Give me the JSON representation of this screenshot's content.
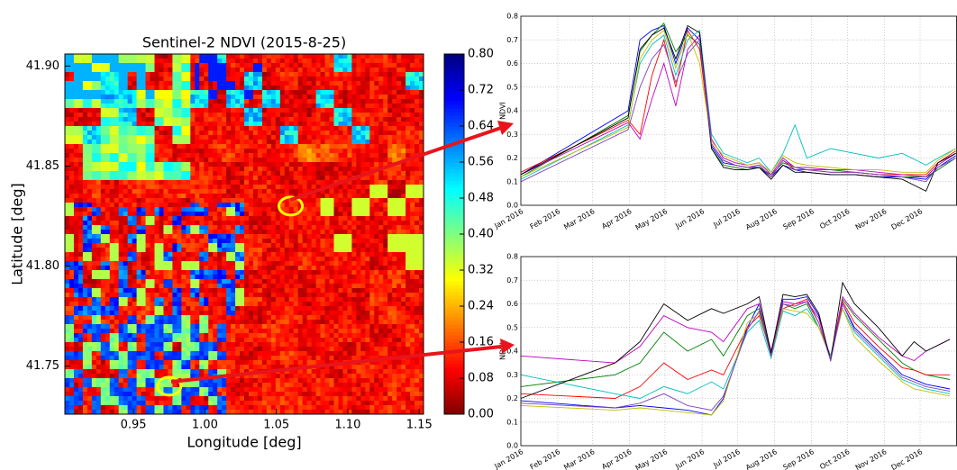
{
  "chart_data": [
    {
      "type": "heatmap",
      "title": "Sentinel-2 NDVI (2015-8-25)",
      "xlabel": "Longitude [deg]",
      "ylabel": "Latitude [deg]",
      "xlim": [
        0.902,
        1.153
      ],
      "ylim": [
        41.726,
        41.906
      ],
      "xticks": [
        0.95,
        {
          "value": 1.0,
          "label": "1.00"
        },
        1.05,
        {
          "value": 1.1,
          "label": "1.10"
        },
        1.15
      ],
      "yticks": [
        41.75,
        {
          "value": 41.8,
          "label": "41.80"
        },
        41.85,
        {
          "value": 41.9,
          "label": "41.90"
        }
      ],
      "clim": [
        0,
        0.8
      ],
      "cticks": [
        {
          "value": 0,
          "label": "0.00"
        },
        0.08,
        0.16,
        0.24,
        0.32,
        {
          "value": 0.4,
          "label": "0.40"
        },
        0.48,
        0.56,
        0.64,
        0.72,
        {
          "value": 0.8,
          "label": "0.80"
        }
      ],
      "colormap": "jet_r",
      "markers": [
        {
          "x": 1.06,
          "y": 41.83
        },
        {
          "x": 0.975,
          "y": 41.74
        }
      ],
      "marker_color": "#ffff00"
    },
    {
      "type": "line",
      "ylabel": "NDVI",
      "grid": true,
      "x": [
        "2016-01-01",
        "2016-03-31",
        "2016-04-10",
        "2016-04-20",
        "2016-04-30",
        "2016-05-10",
        "2016-05-20",
        "2016-05-30",
        "2016-06-09",
        "2016-06-19",
        "2016-06-29",
        "2016-07-09",
        "2016-07-19",
        "2016-07-29",
        "2016-08-08",
        "2016-08-18",
        "2016-08-28",
        "2016-09-17",
        "2016-10-07",
        "2016-10-27",
        "2016-11-16",
        "2016-12-06",
        "2016-12-16",
        "2016-12-31"
      ],
      "xlim": [
        "2016-01",
        "2017-01"
      ],
      "xticks": [
        {
          "value": "2016-01",
          "label": "Jan 2016"
        },
        {
          "value": "2016-02",
          "label": "Feb 2016"
        },
        {
          "value": "2016-03",
          "label": "Mar 2016"
        },
        {
          "value": "2016-04",
          "label": "Apr 2016"
        },
        {
          "value": "2016-05",
          "label": "May 2016"
        },
        {
          "value": "2016-06",
          "label": "Jun 2016"
        },
        {
          "value": "2016-07",
          "label": "Jul 2016"
        },
        {
          "value": "2016-08",
          "label": "Aug 2016"
        },
        {
          "value": "2016-09",
          "label": "Sep 2016"
        },
        {
          "value": "2016-10",
          "label": "Oct 2016"
        },
        {
          "value": "2016-11",
          "label": "Nov 2016"
        },
        {
          "value": "2016-12",
          "label": "Dec 2016"
        }
      ],
      "ylim": [
        0,
        0.8
      ],
      "yticks": [
        {
          "value": 0,
          "label": "0.0"
        },
        0.1,
        0.2,
        0.3,
        0.4,
        0.5,
        0.6,
        0.7,
        0.8
      ],
      "series": [
        {
          "color": "#0000ff",
          "values": [
            0.13,
            0.4,
            0.7,
            0.74,
            0.76,
            0.6,
            0.75,
            0.7,
            0.25,
            0.18,
            0.17,
            0.16,
            0.16,
            0.12,
            0.17,
            0.15,
            0.14,
            0.13,
            0.13,
            0.12,
            0.12,
            0.11,
            0.16,
            0.21
          ]
        },
        {
          "color": "#008000",
          "values": [
            0.12,
            0.38,
            0.65,
            0.72,
            0.77,
            0.65,
            0.72,
            0.68,
            0.24,
            0.17,
            0.16,
            0.15,
            0.16,
            0.13,
            0.18,
            0.16,
            0.15,
            0.15,
            0.14,
            0.13,
            0.12,
            0.12,
            0.15,
            0.2
          ]
        },
        {
          "color": "#ff0000",
          "values": [
            0.14,
            0.36,
            0.3,
            0.55,
            0.7,
            0.5,
            0.74,
            0.66,
            0.26,
            0.19,
            0.17,
            0.16,
            0.17,
            0.12,
            0.19,
            0.15,
            0.15,
            0.14,
            0.14,
            0.13,
            0.13,
            0.13,
            0.18,
            0.23
          ]
        },
        {
          "color": "#00bfbf",
          "values": [
            0.11,
            0.34,
            0.6,
            0.68,
            0.72,
            0.55,
            0.7,
            0.74,
            0.3,
            0.22,
            0.2,
            0.18,
            0.2,
            0.14,
            0.22,
            0.34,
            0.2,
            0.24,
            0.22,
            0.2,
            0.22,
            0.17,
            0.2,
            0.24
          ]
        },
        {
          "color": "#bf00bf",
          "values": [
            0.13,
            0.35,
            0.28,
            0.45,
            0.6,
            0.42,
            0.66,
            0.72,
            0.28,
            0.2,
            0.18,
            0.17,
            0.18,
            0.13,
            0.2,
            0.16,
            0.16,
            0.15,
            0.15,
            0.14,
            0.13,
            0.12,
            0.17,
            0.22
          ]
        },
        {
          "color": "#bfbf00",
          "values": [
            0.12,
            0.33,
            0.62,
            0.7,
            0.74,
            0.58,
            0.73,
            0.6,
            0.27,
            0.21,
            0.19,
            0.17,
            0.18,
            0.14,
            0.21,
            0.18,
            0.17,
            0.16,
            0.15,
            0.15,
            0.14,
            0.14,
            0.19,
            0.24
          ]
        },
        {
          "color": "#000000",
          "values": [
            0.13,
            0.37,
            0.66,
            0.72,
            0.75,
            0.62,
            0.76,
            0.73,
            0.24,
            0.16,
            0.15,
            0.15,
            0.16,
            0.11,
            0.17,
            0.14,
            0.14,
            0.13,
            0.13,
            0.12,
            0.11,
            0.06,
            0.18,
            0.22
          ]
        },
        {
          "color": "#7f3fbf",
          "values": [
            0.1,
            0.32,
            0.5,
            0.62,
            0.68,
            0.52,
            0.64,
            0.7,
            0.26,
            0.19,
            0.17,
            0.16,
            0.17,
            0.12,
            0.19,
            0.16,
            0.15,
            0.14,
            0.14,
            0.13,
            0.12,
            0.1,
            0.16,
            0.2
          ]
        }
      ]
    },
    {
      "type": "line",
      "ylabel": "NDVI",
      "grid": true,
      "x": [
        "2016-01-01",
        "2016-03-20",
        "2016-04-10",
        "2016-04-30",
        "2016-05-20",
        "2016-06-09",
        "2016-06-19",
        "2016-07-09",
        "2016-07-19",
        "2016-07-29",
        "2016-08-08",
        "2016-08-18",
        "2016-08-28",
        "2016-09-07",
        "2016-09-17",
        "2016-09-27",
        "2016-10-07",
        "2016-10-27",
        "2016-11-16",
        "2016-11-26",
        "2016-12-06",
        "2016-12-26"
      ],
      "xlim": [
        "2016-01",
        "2017-01"
      ],
      "xticks": [
        {
          "value": "2016-01",
          "label": "Jan 2016"
        },
        {
          "value": "2016-02",
          "label": "Feb 2016"
        },
        {
          "value": "2016-03",
          "label": "Mar 2016"
        },
        {
          "value": "2016-04",
          "label": "Apr 2016"
        },
        {
          "value": "2016-05",
          "label": "May 2016"
        },
        {
          "value": "2016-06",
          "label": "Jun 2016"
        },
        {
          "value": "2016-07",
          "label": "Jul 2016"
        },
        {
          "value": "2016-08",
          "label": "Aug 2016"
        },
        {
          "value": "2016-09",
          "label": "Sep 2016"
        },
        {
          "value": "2016-10",
          "label": "Oct 2016"
        },
        {
          "value": "2016-11",
          "label": "Nov 2016"
        },
        {
          "value": "2016-12",
          "label": "Dec 2016"
        }
      ],
      "ylim": [
        0,
        0.8
      ],
      "yticks": [
        {
          "value": 0,
          "label": "0.0"
        },
        0.1,
        0.2,
        0.3,
        0.4,
        0.5,
        0.6,
        0.7,
        0.8
      ],
      "series": [
        {
          "color": "#0000ff",
          "values": [
            0.19,
            0.16,
            0.17,
            0.16,
            0.15,
            0.13,
            0.2,
            0.5,
            0.6,
            0.38,
            0.62,
            0.62,
            0.63,
            0.55,
            0.36,
            0.6,
            0.5,
            0.4,
            0.3,
            0.28,
            0.26,
            0.24
          ]
        },
        {
          "color": "#008000",
          "values": [
            0.25,
            0.3,
            0.35,
            0.48,
            0.4,
            0.45,
            0.38,
            0.55,
            0.58,
            0.4,
            0.6,
            0.58,
            0.6,
            0.5,
            0.38,
            0.62,
            0.55,
            0.45,
            0.35,
            0.32,
            0.3,
            0.28
          ]
        },
        {
          "color": "#ff0000",
          "values": [
            0.22,
            0.2,
            0.25,
            0.35,
            0.28,
            0.32,
            0.3,
            0.5,
            0.55,
            0.39,
            0.58,
            0.6,
            0.62,
            0.52,
            0.37,
            0.61,
            0.52,
            0.42,
            0.33,
            0.32,
            0.3,
            0.3
          ]
        },
        {
          "color": "#00bfbf",
          "values": [
            0.3,
            0.22,
            0.2,
            0.25,
            0.22,
            0.27,
            0.24,
            0.48,
            0.53,
            0.37,
            0.57,
            0.55,
            0.58,
            0.5,
            0.38,
            0.58,
            0.48,
            0.38,
            0.28,
            0.26,
            0.24,
            0.22
          ]
        },
        {
          "color": "#bf00bf",
          "values": [
            0.38,
            0.35,
            0.42,
            0.55,
            0.5,
            0.48,
            0.44,
            0.58,
            0.6,
            0.4,
            0.61,
            0.6,
            0.61,
            0.54,
            0.37,
            0.63,
            0.56,
            0.46,
            0.38,
            0.36,
            0.4,
            0.45
          ]
        },
        {
          "color": "#bfbf00",
          "values": [
            0.17,
            0.15,
            0.16,
            0.15,
            0.14,
            0.13,
            0.19,
            0.52,
            0.56,
            0.38,
            0.58,
            0.57,
            0.56,
            0.5,
            0.37,
            0.58,
            0.46,
            0.36,
            0.27,
            0.24,
            0.23,
            0.21
          ]
        },
        {
          "color": "#000000",
          "values": [
            0.2,
            0.35,
            0.44,
            0.6,
            0.53,
            0.58,
            0.56,
            0.6,
            0.63,
            0.39,
            0.64,
            0.63,
            0.64,
            0.56,
            0.36,
            0.69,
            0.6,
            0.5,
            0.38,
            0.44,
            0.4,
            0.45
          ]
        },
        {
          "color": "#7f3fbf",
          "values": [
            0.18,
            0.16,
            0.18,
            0.22,
            0.17,
            0.15,
            0.21,
            0.49,
            0.57,
            0.38,
            0.6,
            0.59,
            0.61,
            0.52,
            0.36,
            0.6,
            0.49,
            0.39,
            0.29,
            0.27,
            0.25,
            0.23
          ]
        }
      ]
    }
  ]
}
